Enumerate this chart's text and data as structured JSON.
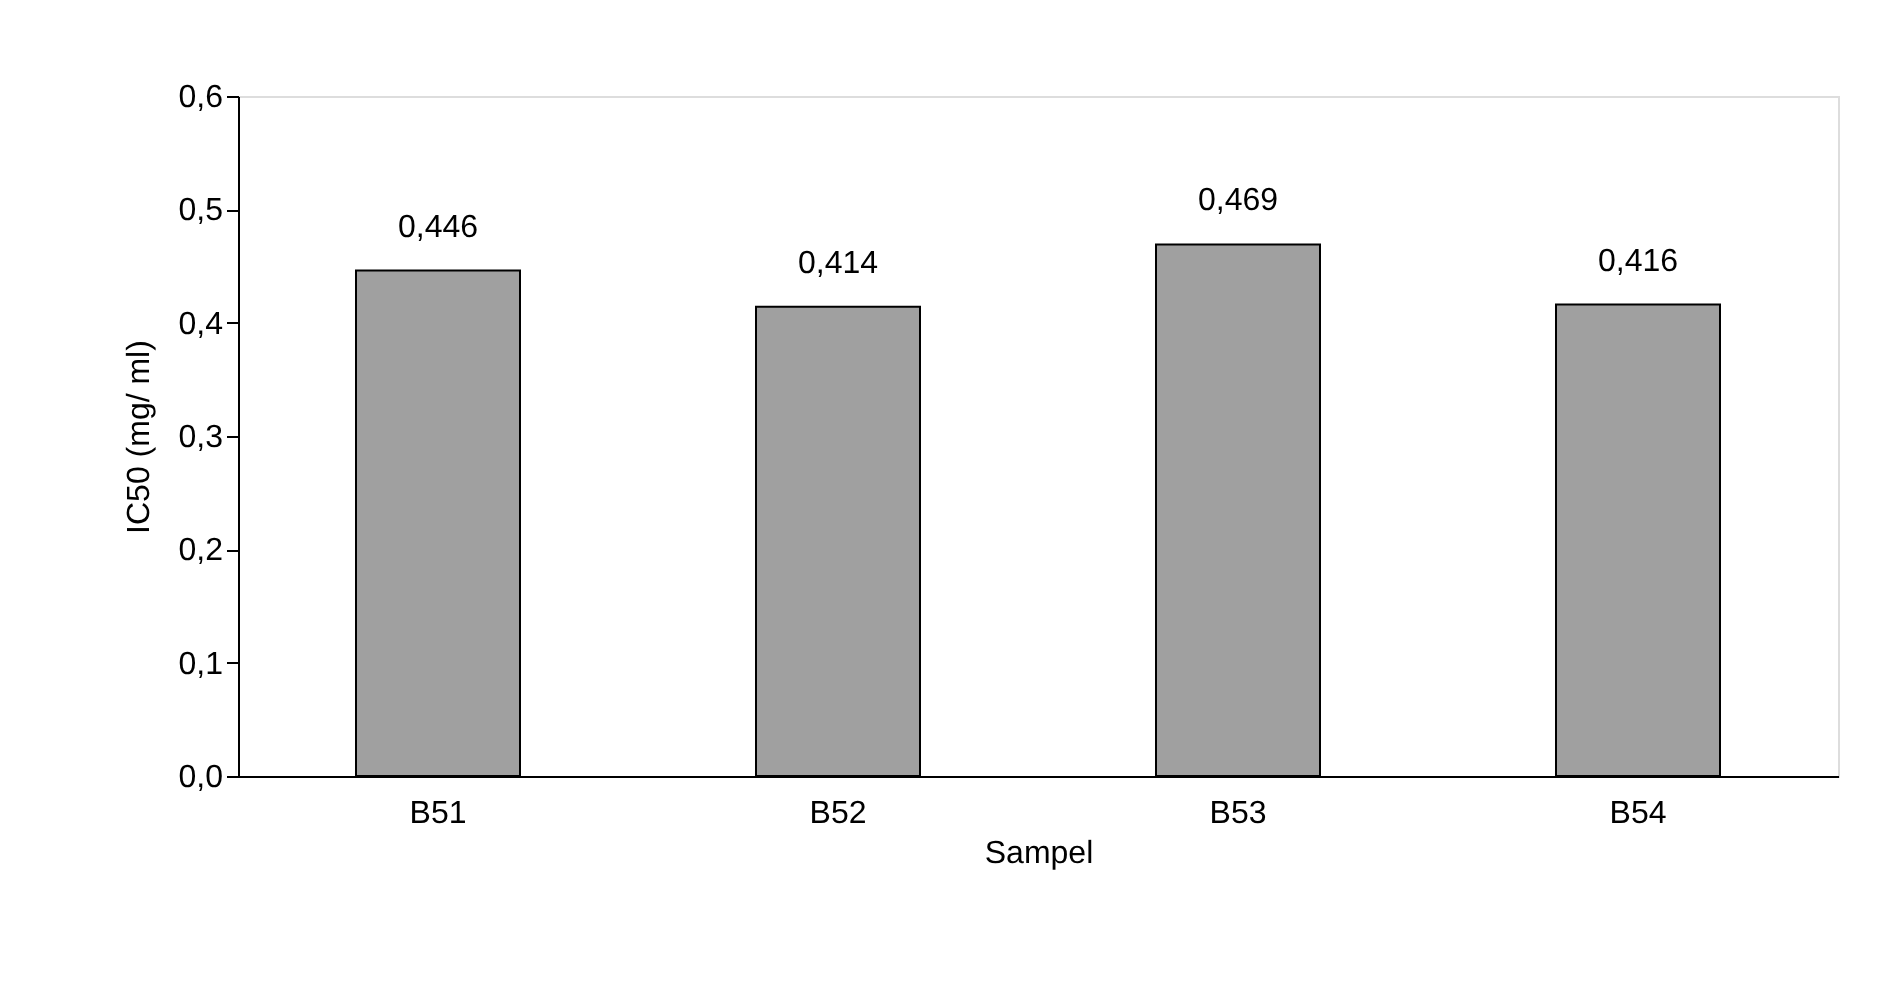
{
  "chart_data": {
    "type": "bar",
    "xlabel": "Sampel",
    "ylabel": "IC50 (mg/ ml)",
    "categories": [
      "B51",
      "B52",
      "B53",
      "B54"
    ],
    "values": [
      0.446,
      0.414,
      0.469,
      0.416
    ],
    "value_labels": [
      "0,446",
      "0,414",
      "0,469",
      "0,416"
    ],
    "color": "#a0a0a0",
    "ylim": [
      0,
      0.6
    ],
    "yticks": [
      {
        "value": 0,
        "label": "0,0"
      },
      {
        "value": 0.1,
        "label": "0,1"
      },
      {
        "value": 0.2,
        "label": "0,2"
      },
      {
        "value": 0.3,
        "label": "0,3"
      },
      {
        "value": 0.4,
        "label": "0,4"
      },
      {
        "value": 0.5,
        "label": "0,5"
      },
      {
        "value": 0.6,
        "label": "0,6"
      }
    ],
    "grid": false
  }
}
